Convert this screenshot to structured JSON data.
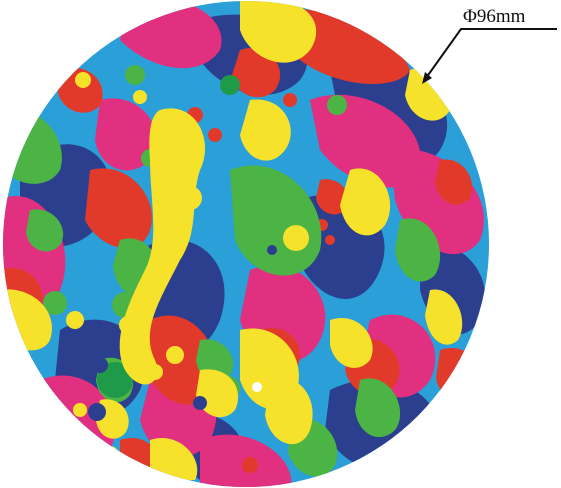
{
  "annotation": {
    "diameter_label": "Φ96mm"
  },
  "palette": {
    "blue": "#2a9fd8",
    "navy": "#2b3f8e",
    "magenta": "#e0307f",
    "red": "#e23a2a",
    "yellow": "#f7e22b",
    "green": "#4bb444",
    "dark_green": "#1f9a48",
    "leader_line": "#111111"
  },
  "icons": [
    "circular-pattern-disc",
    "dimension-leader-arrow"
  ]
}
